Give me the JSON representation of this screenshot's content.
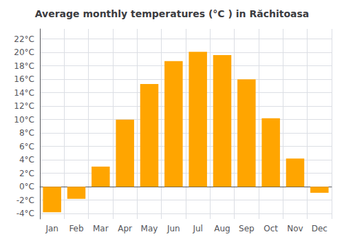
{
  "chart_data": {
    "type": "bar",
    "title": "Average monthly temperatures (°C ) in Răchitoasa",
    "categories": [
      "Jan",
      "Feb",
      "Mar",
      "Apr",
      "May",
      "Jun",
      "Jul",
      "Aug",
      "Sep",
      "Oct",
      "Nov",
      "Dec"
    ],
    "values": [
      -3.8,
      -1.8,
      3.0,
      10.0,
      15.3,
      18.7,
      20.1,
      19.6,
      16.0,
      10.2,
      4.2,
      -0.9
    ],
    "color": "#FFA500",
    "ylim": [
      -4.8,
      23.5
    ],
    "yticks": [
      {
        "value": -4,
        "label": "-4°C"
      },
      {
        "value": -2,
        "label": "-2°C"
      },
      {
        "value": 0,
        "label": "0°C"
      },
      {
        "value": 2,
        "label": "2°C"
      },
      {
        "value": 4,
        "label": "4°C"
      },
      {
        "value": 6,
        "label": "6°C"
      },
      {
        "value": 8,
        "label": "8°C"
      },
      {
        "value": 10,
        "label": "10°C"
      },
      {
        "value": 12,
        "label": "12°C"
      },
      {
        "value": 14,
        "label": "14°C"
      },
      {
        "value": 16,
        "label": "16°C"
      },
      {
        "value": 18,
        "label": "18°C"
      },
      {
        "value": 20,
        "label": "20°C"
      },
      {
        "value": 22,
        "label": "22°C"
      }
    ],
    "grid": true
  }
}
